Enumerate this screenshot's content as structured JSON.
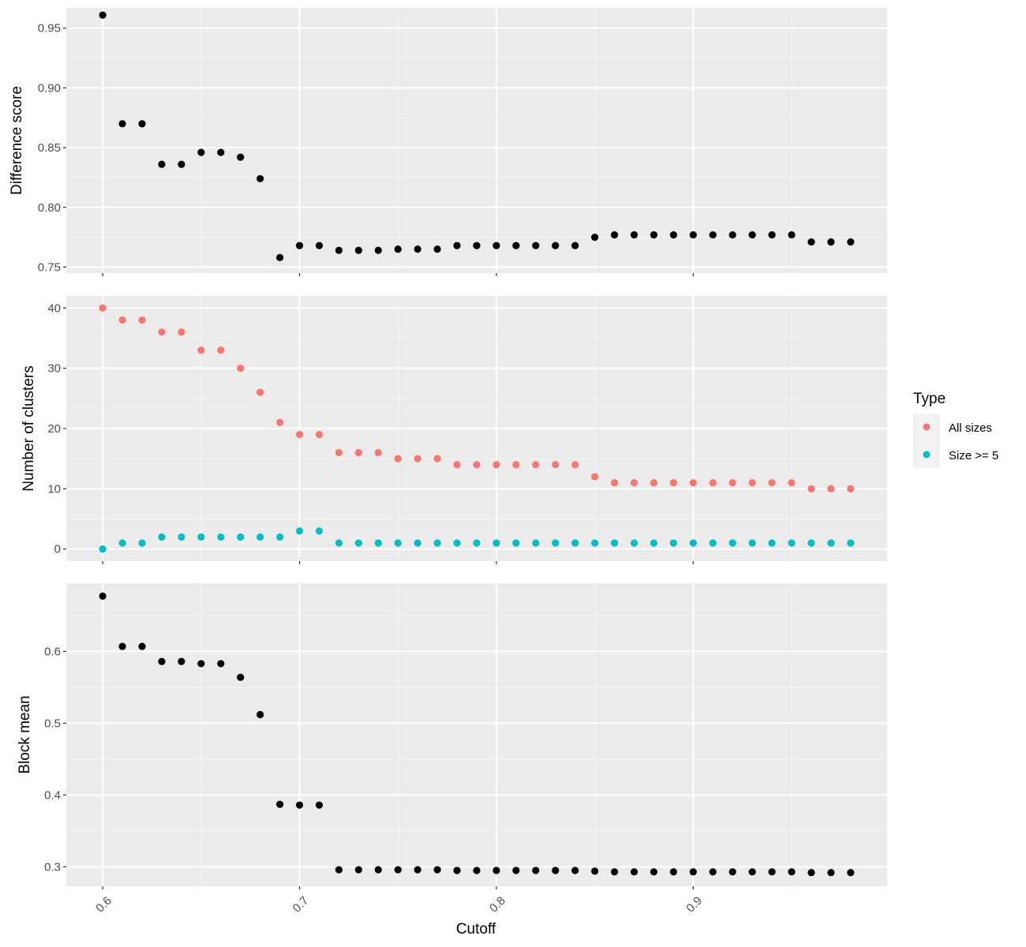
{
  "chart_data": [
    {
      "type": "scatter",
      "ylabel": "Difference score",
      "ylim": [
        0.745,
        0.967
      ],
      "yticks": [
        0.75,
        0.8,
        0.85,
        0.9,
        0.95
      ],
      "ytick_labels": [
        "0.75",
        "0.80",
        "0.85",
        "0.90",
        "0.95"
      ],
      "series": [
        {
          "color": "#000000",
          "x": [
            0.6,
            0.61,
            0.62,
            0.63,
            0.64,
            0.65,
            0.66,
            0.67,
            0.68,
            0.69,
            0.7,
            0.71,
            0.72,
            0.73,
            0.74,
            0.75,
            0.76,
            0.77,
            0.78,
            0.79,
            0.8,
            0.81,
            0.82,
            0.83,
            0.84,
            0.85,
            0.86,
            0.87,
            0.88,
            0.89,
            0.9,
            0.91,
            0.92,
            0.93,
            0.94,
            0.95,
            0.96,
            0.97,
            0.98
          ],
          "y": [
            0.961,
            0.87,
            0.87,
            0.836,
            0.836,
            0.846,
            0.846,
            0.842,
            0.824,
            0.758,
            0.768,
            0.768,
            0.764,
            0.764,
            0.764,
            0.765,
            0.765,
            0.765,
            0.768,
            0.768,
            0.768,
            0.768,
            0.768,
            0.768,
            0.768,
            0.775,
            0.777,
            0.777,
            0.777,
            0.777,
            0.777,
            0.777,
            0.777,
            0.777,
            0.777,
            0.777,
            0.771,
            0.771,
            0.771
          ]
        }
      ]
    },
    {
      "type": "scatter",
      "ylabel": "Number of clusters",
      "ylim": [
        -2,
        42
      ],
      "yticks": [
        0,
        10,
        20,
        30,
        40
      ],
      "ytick_labels": [
        "0",
        "10",
        "20",
        "30",
        "40"
      ],
      "legend": {
        "title": "Type",
        "position": "right"
      },
      "series": [
        {
          "name": "All sizes",
          "color": "#F8766D",
          "x": [
            0.6,
            0.61,
            0.62,
            0.63,
            0.64,
            0.65,
            0.66,
            0.67,
            0.68,
            0.69,
            0.7,
            0.71,
            0.72,
            0.73,
            0.74,
            0.75,
            0.76,
            0.77,
            0.78,
            0.79,
            0.8,
            0.81,
            0.82,
            0.83,
            0.84,
            0.85,
            0.86,
            0.87,
            0.88,
            0.89,
            0.9,
            0.91,
            0.92,
            0.93,
            0.94,
            0.95,
            0.96,
            0.97,
            0.98
          ],
          "y": [
            40,
            38,
            38,
            36,
            36,
            33,
            33,
            30,
            26,
            21,
            19,
            19,
            16,
            16,
            16,
            15,
            15,
            15,
            14,
            14,
            14,
            14,
            14,
            14,
            14,
            12,
            11,
            11,
            11,
            11,
            11,
            11,
            11,
            11,
            11,
            11,
            10,
            10,
            10
          ]
        },
        {
          "name": "Size >= 5",
          "color": "#00BFC4",
          "x": [
            0.6,
            0.61,
            0.62,
            0.63,
            0.64,
            0.65,
            0.66,
            0.67,
            0.68,
            0.69,
            0.7,
            0.71,
            0.72,
            0.73,
            0.74,
            0.75,
            0.76,
            0.77,
            0.78,
            0.79,
            0.8,
            0.81,
            0.82,
            0.83,
            0.84,
            0.85,
            0.86,
            0.87,
            0.88,
            0.89,
            0.9,
            0.91,
            0.92,
            0.93,
            0.94,
            0.95,
            0.96,
            0.97,
            0.98
          ],
          "y": [
            0,
            1,
            1,
            2,
            2,
            2,
            2,
            2,
            2,
            2,
            3,
            3,
            1,
            1,
            1,
            1,
            1,
            1,
            1,
            1,
            1,
            1,
            1,
            1,
            1,
            1,
            1,
            1,
            1,
            1,
            1,
            1,
            1,
            1,
            1,
            1,
            1,
            1,
            1
          ]
        }
      ]
    },
    {
      "type": "scatter",
      "ylabel": "Block mean",
      "xlabel": "Cutoff",
      "ylim": [
        0.273,
        0.695
      ],
      "yticks": [
        0.3,
        0.4,
        0.5,
        0.6
      ],
      "ytick_labels": [
        "0.3",
        "0.4",
        "0.5",
        "0.6"
      ],
      "series": [
        {
          "color": "#000000",
          "x": [
            0.6,
            0.61,
            0.62,
            0.63,
            0.64,
            0.65,
            0.66,
            0.67,
            0.68,
            0.69,
            0.7,
            0.71,
            0.72,
            0.73,
            0.74,
            0.75,
            0.76,
            0.77,
            0.78,
            0.79,
            0.8,
            0.81,
            0.82,
            0.83,
            0.84,
            0.85,
            0.86,
            0.87,
            0.88,
            0.89,
            0.9,
            0.91,
            0.92,
            0.93,
            0.94,
            0.95,
            0.96,
            0.97,
            0.98
          ],
          "y": [
            0.677,
            0.607,
            0.607,
            0.586,
            0.586,
            0.583,
            0.583,
            0.564,
            0.512,
            0.387,
            0.386,
            0.386,
            0.296,
            0.296,
            0.296,
            0.296,
            0.296,
            0.296,
            0.295,
            0.295,
            0.295,
            0.295,
            0.295,
            0.295,
            0.295,
            0.294,
            0.293,
            0.293,
            0.293,
            0.293,
            0.293,
            0.293,
            0.293,
            0.293,
            0.293,
            0.293,
            0.292,
            0.292,
            0.292
          ]
        }
      ]
    }
  ],
  "x_axis": {
    "label": "Cutoff",
    "xlim": [
      0.5815,
      0.9985
    ],
    "ticks": [
      0.6,
      0.7,
      0.8,
      0.9
    ],
    "tick_labels": [
      "0.6",
      "0.7",
      "0.8",
      "0.9"
    ]
  },
  "colors": {
    "panel_background": "#EBEBEB",
    "grid_major": "#FFFFFF",
    "grid_minor": "#F5F5F5"
  }
}
